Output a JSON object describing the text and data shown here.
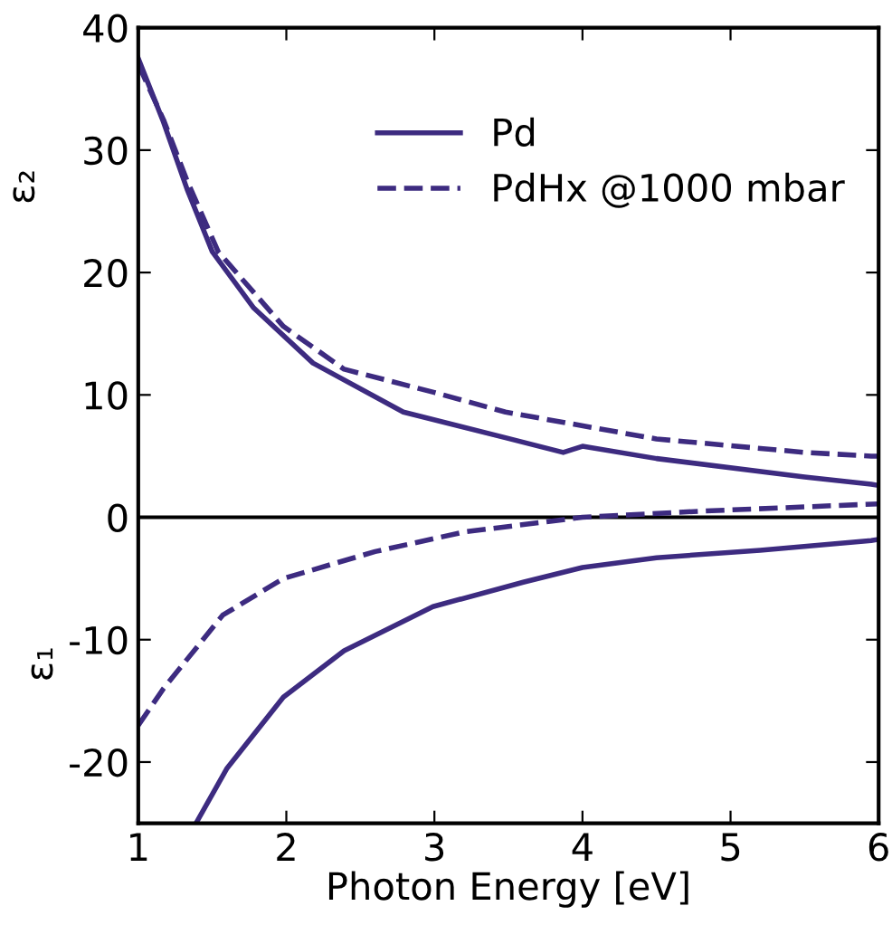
{
  "chart_data": {
    "type": "line",
    "xlabel": "Photon Energy [eV]",
    "ylabel": "ε₂",
    "annotations": [
      "ε₁"
    ],
    "xlim": [
      1,
      6
    ],
    "ylim": [
      -25,
      40
    ],
    "xticks": [
      1,
      2,
      3,
      4,
      5,
      6
    ],
    "yticks": [
      -20,
      -10,
      0,
      10,
      20,
      30,
      40
    ],
    "grid": false,
    "legend": "top right",
    "marker": "none",
    "ref_lines": [
      {
        "axis": "y",
        "value": 0,
        "color": "#000000"
      }
    ],
    "series": [
      {
        "name": "Pd",
        "color": "#3d2b80",
        "line_style": "solid",
        "x": [
          1,
          1.17,
          1.33,
          1.5,
          1.78,
          2.18,
          2.79,
          3.48,
          3.87,
          4.0,
          4.5,
          5.5,
          5.95,
          6
        ],
        "values": [
          37.5,
          32.3,
          26.8,
          21.7,
          17.1,
          12.6,
          8.6,
          6.5,
          5.3,
          5.8,
          4.8,
          3.3,
          2.7,
          2.6
        ]
      },
      {
        "name": "PdHx @1000 mbar",
        "color": "#3d2b80",
        "line_style": "dashed",
        "x": [
          1,
          1.17,
          1.33,
          1.54,
          1.98,
          2.39,
          3,
          3.48,
          4.5,
          5.5,
          5.95,
          6
        ],
        "values": [
          37,
          32.5,
          27.5,
          21.7,
          15.6,
          12.1,
          10.2,
          8.6,
          6.4,
          5.3,
          5.0,
          5.0
        ]
      },
      {
        "color": "#3d2b80",
        "line_style": "solid",
        "x": [
          1.39,
          1.6,
          1.98,
          2.39,
          2.99,
          3.6,
          4.0,
          4.5,
          5.2,
          5.95,
          6
        ],
        "values": [
          -25,
          -20.5,
          -14.7,
          -10.9,
          -7.3,
          -5.3,
          -4.1,
          -3.3,
          -2.7,
          -1.9,
          -1.8
        ]
      },
      {
        "color": "#3d2b80",
        "line_style": "dashed",
        "x": [
          1,
          1.17,
          1.57,
          1.98,
          2.6,
          3.2,
          4,
          4.8,
          6
        ],
        "values": [
          -17,
          -14,
          -8,
          -5,
          -2.8,
          -1.2,
          0,
          0.5,
          1.1
        ]
      }
    ]
  }
}
